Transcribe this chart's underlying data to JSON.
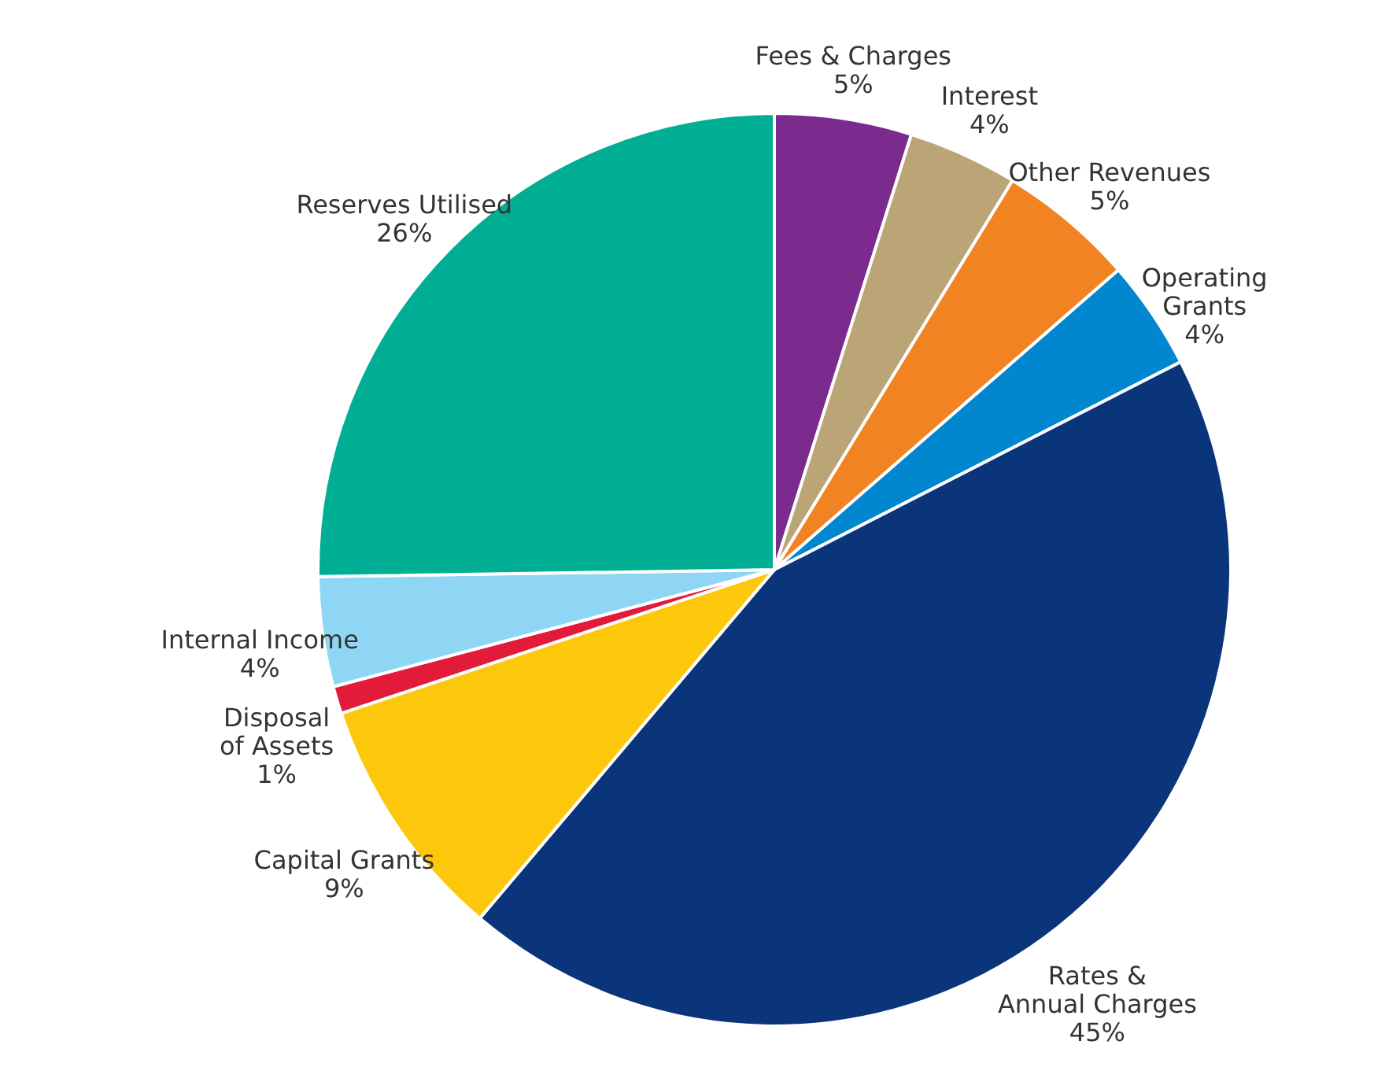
{
  "chart_data": {
    "type": "pie",
    "categories": [
      "Fees & Charges",
      "Interest",
      "Other Revenues",
      "Operating\nGrants",
      "Rates &\nAnnual Charges",
      "Capital Grants",
      "Disposal\nof Assets",
      "Internal Income",
      "Reserves Utilised"
    ],
    "values": [
      5,
      4,
      5,
      4,
      45,
      9,
      1,
      4,
      26
    ],
    "value_labels": [
      "5%",
      "4%",
      "5%",
      "4%",
      "45%",
      "9%",
      "1%",
      "4%",
      "26%"
    ],
    "colors": [
      "#7b2a8e",
      "#bba576",
      "#f28322",
      "#0087cf",
      "#0a357a",
      "#fdc70c",
      "#e31b3a",
      "#8fd6f5",
      "#00ae94"
    ]
  }
}
